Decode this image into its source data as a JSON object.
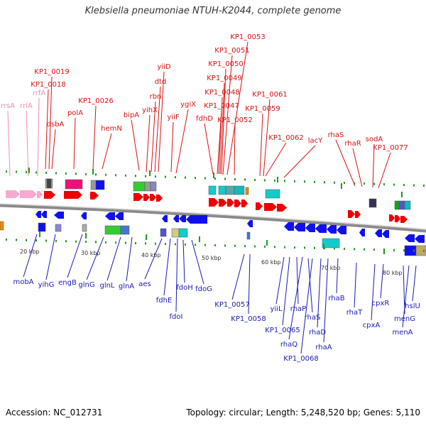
{
  "title": "Klebsiella pneumoniae NTUH-K2044, complete genome",
  "footer": {
    "accession": "Accession: NC_012731",
    "summary": "Topology: circular; Length: 5,248,520 bp; Genes: 5,110"
  },
  "colors": {
    "forward_label": "#dd1111",
    "reverse_label": "#1a1ab5",
    "rna_label": "#f08cb4",
    "axis": "#888888",
    "tick": "#229922"
  },
  "scale_ticks": [
    "20 kbp",
    "30 kbp",
    "40 kbp",
    "50 kbp",
    "60 kbp",
    "70 kbp",
    "80 kbp"
  ],
  "top_labels": [
    "rrsA",
    "rrlA",
    "rrfA",
    "KP1_0018",
    "KP1_0019",
    "dsbA",
    "polA",
    "KP1_0026",
    "hemN",
    "bipA",
    "yihX",
    "rbn",
    "dtd",
    "yiiD",
    "yiiF",
    "ygiX",
    "fdhD",
    "KP1_0047",
    "KP1_0048",
    "KP1_0049",
    "KP1_0050",
    "KP1_0051",
    "KP1_0053",
    "KP1_0052",
    "KP1_0059",
    "KP1_0061",
    "KP1_0062",
    "lacY",
    "rhaS",
    "rhaR",
    "sodA",
    "KP1_0077"
  ],
  "bottom_labels": [
    "mobA",
    "yihG",
    "engB",
    "glnG",
    "glnL",
    "glnA",
    "aes",
    "fdhE",
    "fdoI",
    "fdoH",
    "fdoG",
    "KP1_0057",
    "KP1_0058",
    "yiiL",
    "KP1_0065",
    "rhaP",
    "rhaQ",
    "rhaS",
    "KP1_0068",
    "rhaD",
    "rhaA",
    "rhaB",
    "rhaT",
    "cpxA",
    "cpxR",
    "menG",
    "menA",
    "hslU"
  ]
}
